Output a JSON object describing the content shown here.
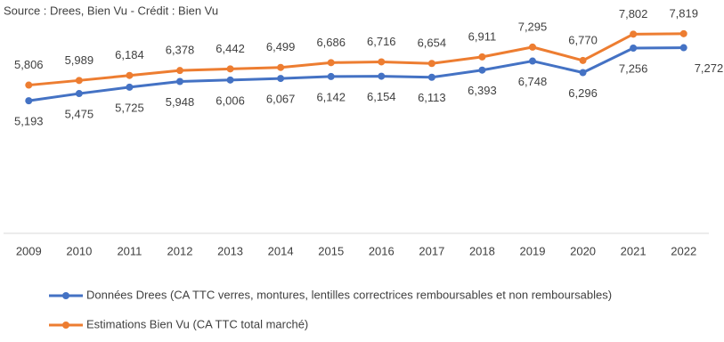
{
  "chart_data": {
    "type": "line",
    "title": "Source : Drees, Bien Vu - Crédit : Bien Vu",
    "categories": [
      "2009",
      "2010",
      "2011",
      "2012",
      "2013",
      "2014",
      "2015",
      "2016",
      "2017",
      "2018",
      "2019",
      "2020",
      "2021",
      "2022"
    ],
    "series": [
      {
        "name": "Données Drees (CA TTC verres, montures, lentilles correctrices remboursables et non remboursables)",
        "color": "#4472c4",
        "values": [
          5193,
          5475,
          5725,
          5948,
          6006,
          6067,
          6142,
          6154,
          6113,
          6393,
          6748,
          6296,
          7256,
          7272
        ],
        "value_labels": [
          "5,193",
          "5,475",
          "5,725",
          "5,948",
          "6,006",
          "6,067",
          "6,142",
          "6,154",
          "6,113",
          "6,393",
          "6,748",
          "6,296",
          "7,256",
          "7,272"
        ]
      },
      {
        "name": "Estimations Bien Vu (CA TTC total marché)",
        "color": "#ed7d31",
        "values": [
          5806,
          5989,
          6184,
          6378,
          6442,
          6499,
          6686,
          6716,
          6654,
          6911,
          7295,
          6770,
          7802,
          7819
        ],
        "value_labels": [
          "5,806",
          "5,989",
          "6,184",
          "6,378",
          "6,442",
          "6,499",
          "6,686",
          "6,716",
          "6,654",
          "6,911",
          "7,295",
          "6,770",
          "7,802",
          "7,819"
        ]
      }
    ],
    "ylim": [
      0,
      9000
    ],
    "grid": false
  }
}
